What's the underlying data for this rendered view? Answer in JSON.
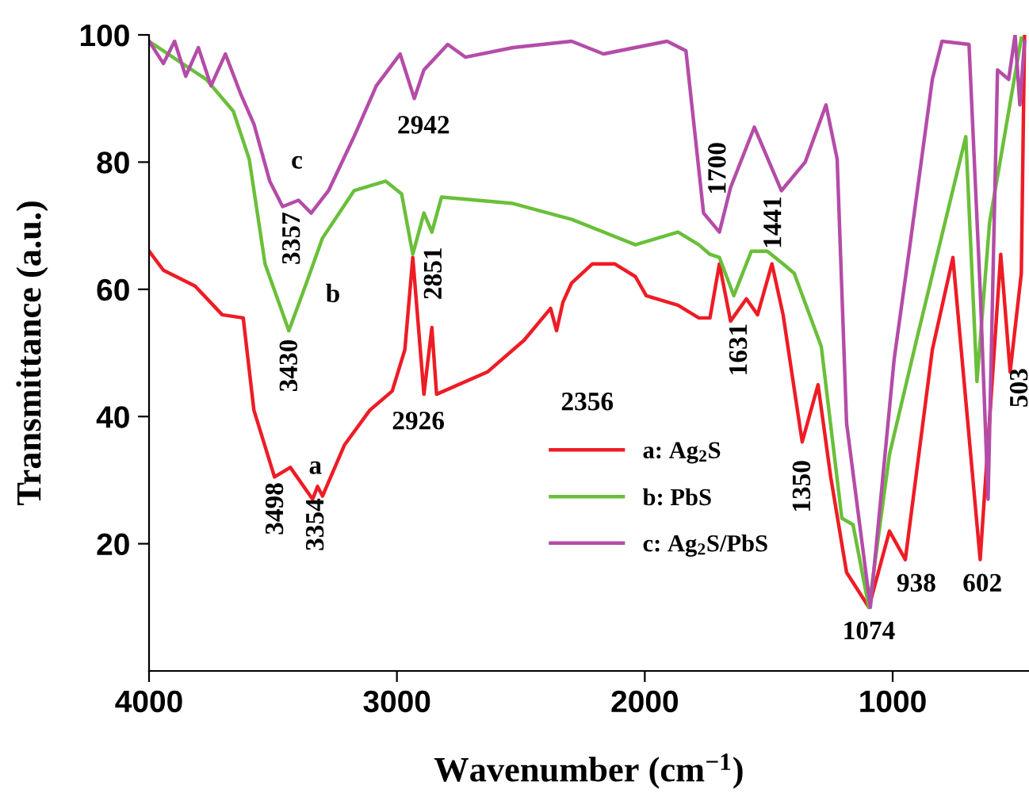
{
  "chart_data": {
    "type": "line",
    "xlabel": "Wavenumber (cm$^{−1}$)",
    "ylabel": "Transmittance (a.u.)",
    "xlim": [
      4000,
      450
    ],
    "ylim": [
      0,
      100
    ],
    "xticks": [
      4000,
      3000,
      2000,
      1000
    ],
    "yticks": [
      20,
      40,
      60,
      80,
      100
    ],
    "grid": false,
    "legend": "center",
    "line_style": "solid",
    "marker": "none",
    "series": [
      {
        "name": "a: Ag$_{2}$S",
        "color": "#ee1c25",
        "x": [
          4000,
          3942,
          3814,
          3705,
          3620,
          3577,
          3494,
          3430,
          3340,
          3320,
          3300,
          3212,
          3109,
          3019,
          2968,
          2936,
          2891,
          2859,
          2840,
          2635,
          2487,
          2380,
          2356,
          2330,
          2295,
          2211,
          2122,
          2038,
          1994,
          1866,
          1782,
          1737,
          1699,
          1654,
          1590,
          1545,
          1487,
          1442,
          1365,
          1301,
          1250,
          1186,
          1096,
          1013,
          949,
          840,
          757,
          647,
          564,
          526,
          481,
          468
        ],
        "values": [
          66,
          63,
          60.5,
          56,
          55.5,
          41,
          30.5,
          32,
          27,
          29,
          27.5,
          35.5,
          41,
          44,
          50.5,
          65,
          43.5,
          54,
          43.5,
          47,
          52,
          57,
          53.5,
          58,
          61,
          64,
          64,
          62,
          59,
          57.5,
          55.5,
          55.5,
          64,
          55,
          58.5,
          56,
          64,
          56,
          36,
          45,
          30.5,
          15.5,
          10,
          22,
          17.5,
          50.5,
          65,
          17.5,
          65.5,
          47,
          62.5,
          100
        ]
      },
      {
        "name": "b: PbS",
        "color": "#6abf3a",
        "x": [
          4000,
          3769,
          3660,
          3596,
          3532,
          3436,
          3365,
          3301,
          3173,
          3045,
          2981,
          2936,
          2891,
          2859,
          2820,
          2532,
          2295,
          2038,
          1866,
          1782,
          1737,
          1699,
          1641,
          1570,
          1506,
          1442,
          1397,
          1288,
          1205,
          1160,
          1096,
          1013,
          904,
          705,
          660,
          609,
          481
        ],
        "values": [
          99,
          93,
          88,
          80.5,
          64,
          53.5,
          61,
          68,
          75.5,
          77,
          75,
          65.5,
          72,
          69,
          74.5,
          73.5,
          71,
          67,
          69,
          67,
          65.5,
          65,
          59,
          66,
          66,
          64,
          62.5,
          51,
          24,
          23,
          10,
          34,
          52,
          84,
          45.5,
          70.5,
          99.5
        ]
      },
      {
        "name": "c: Ag$_{2}$S/PbS",
        "color": "#b44ca8",
        "x": [
          4000,
          3942,
          3897,
          3852,
          3801,
          3750,
          3692,
          3628,
          3577,
          3513,
          3461,
          3397,
          3346,
          3276,
          3173,
          3083,
          2987,
          2930,
          2891,
          2795,
          2724,
          2532,
          2295,
          2167,
          1910,
          1834,
          1763,
          1699,
          1654,
          1558,
          1449,
          1353,
          1269,
          1224,
          1186,
          1090,
          994,
          930,
          840,
          801,
          692,
          647,
          615,
          577,
          532,
          506,
          487,
          468
        ],
        "values": [
          99,
          95.5,
          99,
          93.5,
          98,
          92,
          97,
          90.5,
          86,
          77,
          73,
          74,
          72,
          75.5,
          84,
          92,
          97,
          90,
          94.5,
          98.5,
          96.5,
          98,
          99,
          97,
          99,
          97.5,
          72,
          69,
          76,
          85.5,
          75.5,
          80,
          89,
          80.5,
          39,
          10,
          49,
          67,
          93,
          99,
          98.5,
          60,
          27,
          94.5,
          93,
          100,
          89,
          99
        ]
      }
    ],
    "annotations": [
      "3498",
      "3354",
      "a",
      "3430",
      "b",
      "3357",
      "c",
      "2942",
      "2851",
      "2926",
      "2356",
      "1700",
      "1441",
      "1631",
      "1350",
      "1074",
      "938",
      "602",
      "503"
    ]
  }
}
